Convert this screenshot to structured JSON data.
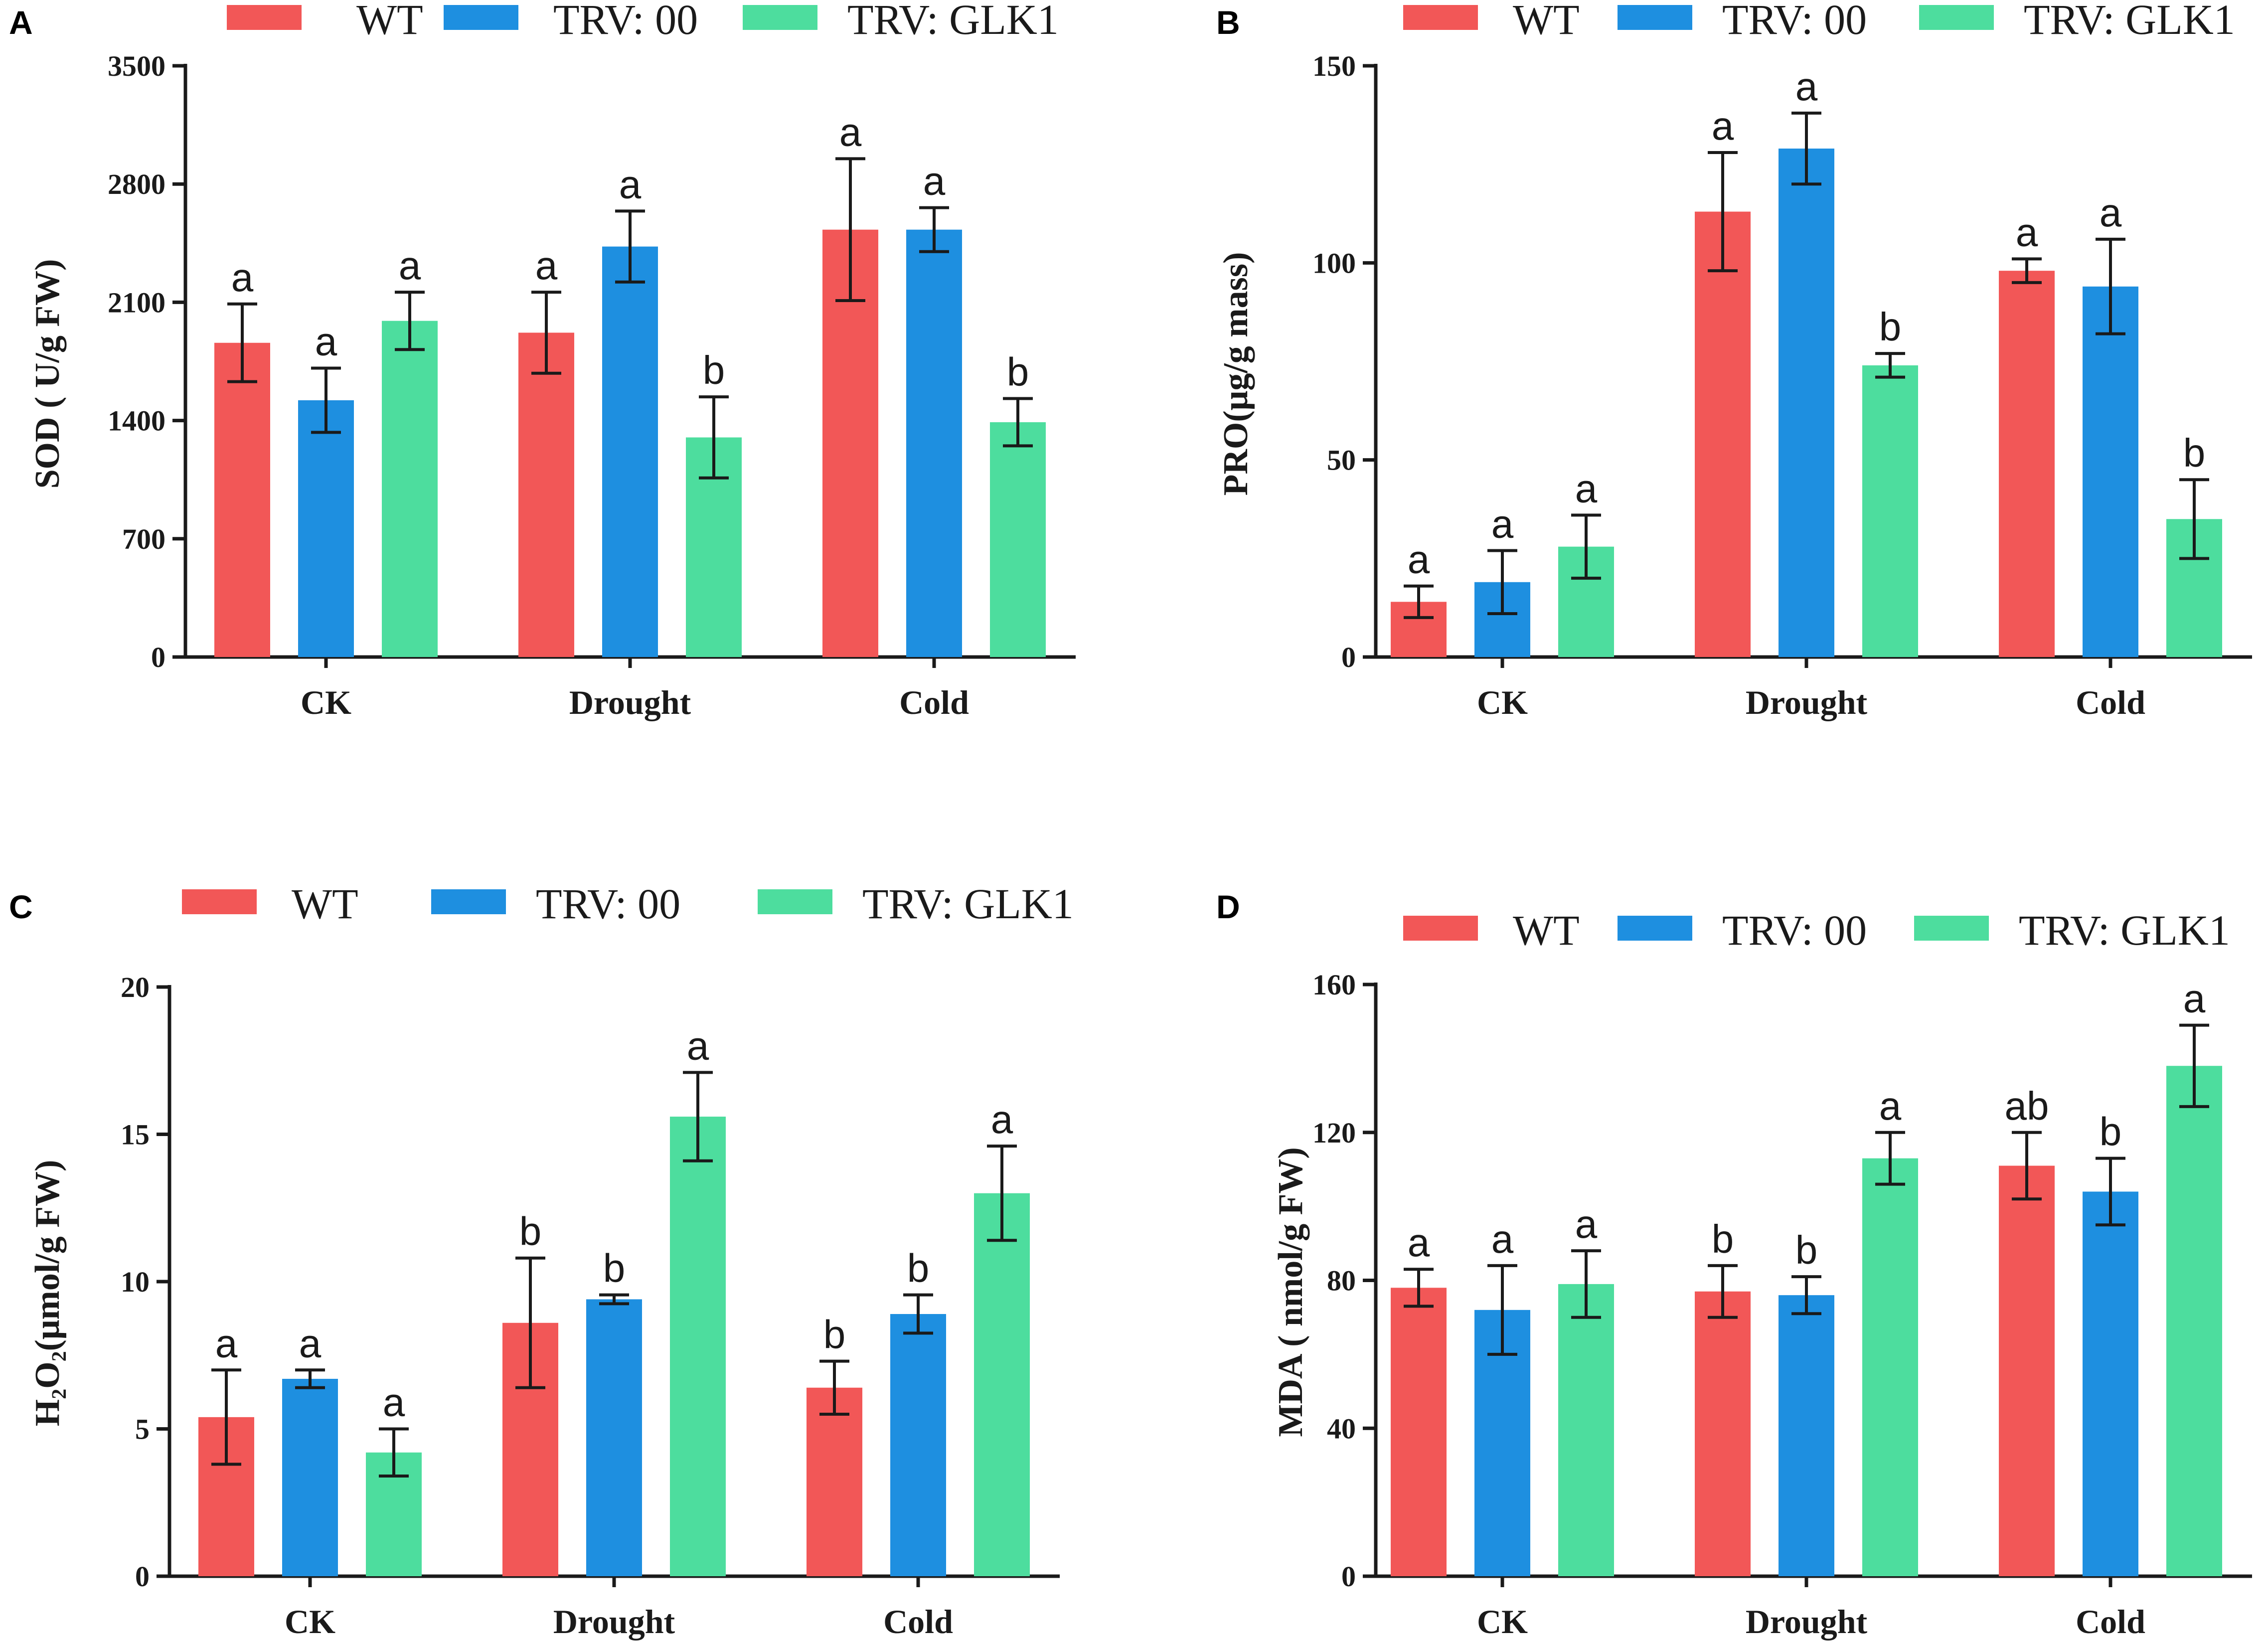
{
  "colors": {
    "WT": "#F25757",
    "TRV: 00": "#1E8FE0",
    "TRV: GLK1": "#4DDD9E"
  },
  "chart_data": [
    {
      "panel": "A",
      "type": "bar",
      "ylabel": "SOD ( U/g FW)",
      "ylim": [
        0,
        3500
      ],
      "yticks": [
        0,
        700,
        1400,
        2100,
        2800,
        3500
      ],
      "categories": [
        "CK",
        "Drought",
        "Cold"
      ],
      "legend": [
        "WT",
        "TRV: 00",
        "TRV: GLK1"
      ],
      "series": [
        {
          "name": "WT",
          "values": [
            1860,
            1920,
            2530
          ],
          "errors": [
            230,
            240,
            420
          ],
          "letters": [
            "a",
            "a",
            "a"
          ]
        },
        {
          "name": "TRV: 00",
          "values": [
            1520,
            2430,
            2530
          ],
          "errors": [
            190,
            210,
            130
          ],
          "letters": [
            "a",
            "a",
            "a"
          ]
        },
        {
          "name": "TRV: GLK1",
          "values": [
            1990,
            1300,
            1390
          ],
          "errors": [
            170,
            240,
            140
          ],
          "letters": [
            "a",
            "b",
            "b"
          ]
        }
      ]
    },
    {
      "panel": "B",
      "type": "bar",
      "ylabel": "PRO(μg/g mass)",
      "ylim": [
        0,
        150
      ],
      "yticks": [
        0,
        50,
        100,
        150
      ],
      "categories": [
        "CK",
        "Drought",
        "Cold"
      ],
      "legend": [
        "WT",
        "TRV: 00",
        "TRV: GLK1"
      ],
      "series": [
        {
          "name": "WT",
          "values": [
            14,
            113,
            98
          ],
          "errors": [
            4,
            15,
            3
          ],
          "letters": [
            "a",
            "a",
            "a"
          ]
        },
        {
          "name": "TRV: 00",
          "values": [
            19,
            129,
            94
          ],
          "errors": [
            8,
            9,
            12
          ],
          "letters": [
            "a",
            "a",
            "a"
          ]
        },
        {
          "name": "TRV: GLK1",
          "values": [
            28,
            74,
            35
          ],
          "errors": [
            8,
            3,
            10
          ],
          "letters": [
            "a",
            "b",
            "b"
          ]
        }
      ]
    },
    {
      "panel": "C",
      "type": "bar",
      "ylabel": "H₂O₂(μmol/g FW)",
      "ylim": [
        0,
        20
      ],
      "yticks": [
        0,
        5,
        10,
        15,
        20
      ],
      "categories": [
        "CK",
        "Drought",
        "Cold"
      ],
      "legend": [
        "WT",
        "TRV: 00",
        "TRV: GLK1"
      ],
      "series": [
        {
          "name": "WT",
          "values": [
            5.4,
            8.6,
            6.4
          ],
          "errors": [
            1.6,
            2.2,
            0.9
          ],
          "letters": [
            "a",
            "b",
            "b"
          ]
        },
        {
          "name": "TRV: 00",
          "values": [
            6.7,
            9.4,
            8.9
          ],
          "errors": [
            0.3,
            0.15,
            0.65
          ],
          "letters": [
            "a",
            "b",
            "b"
          ]
        },
        {
          "name": "TRV: GLK1",
          "values": [
            4.2,
            15.6,
            13.0
          ],
          "errors": [
            0.8,
            1.5,
            1.6
          ],
          "letters": [
            "a",
            "a",
            "a"
          ]
        }
      ]
    },
    {
      "panel": "D",
      "type": "bar",
      "ylabel": "MDA ( nmol/g FW)",
      "ylim": [
        0,
        160
      ],
      "yticks": [
        0,
        40,
        80,
        120,
        160
      ],
      "categories": [
        "CK",
        "Drought",
        "Cold"
      ],
      "legend": [
        "WT",
        "TRV: 00",
        "TRV: GLK1"
      ],
      "series": [
        {
          "name": "WT",
          "values": [
            78,
            77,
            111
          ],
          "errors": [
            5,
            7,
            9
          ],
          "letters": [
            "a",
            "b",
            "ab"
          ]
        },
        {
          "name": "TRV: 00",
          "values": [
            72,
            76,
            104
          ],
          "errors": [
            12,
            5,
            9
          ],
          "letters": [
            "a",
            "b",
            "b"
          ]
        },
        {
          "name": "TRV: GLK1",
          "values": [
            79,
            113,
            138
          ],
          "errors": [
            9,
            7,
            11
          ],
          "letters": [
            "a",
            "a",
            "a"
          ]
        }
      ]
    }
  ]
}
